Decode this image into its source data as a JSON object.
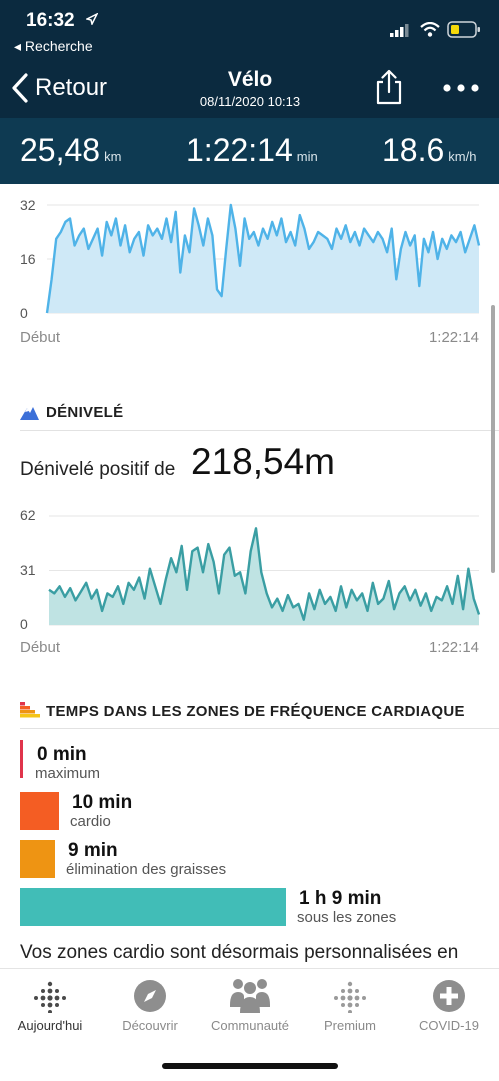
{
  "status_bar": {
    "time": "16:32",
    "back_app": "◂ Recherche"
  },
  "header": {
    "back_label": "Retour",
    "title": "Vélo",
    "subtitle": "08/11/2020 10:13"
  },
  "stats": [
    {
      "value": "25,48",
      "unit": "km"
    },
    {
      "value": "1:22:14",
      "unit": "min"
    },
    {
      "value": "18.6",
      "unit": "km/h"
    }
  ],
  "speed_chart": {
    "chart_data": {
      "type": "area",
      "y_ticks": [
        "32",
        "16",
        "0"
      ],
      "ylim": [
        0,
        32
      ],
      "x_start_label": "Début",
      "x_end_label": "1:22:14",
      "color": "#4fb3e8",
      "fill": "#cfe9f7",
      "values": [
        0,
        10,
        22,
        24,
        27,
        28,
        20,
        23,
        25,
        19,
        22,
        25,
        17,
        27,
        23,
        28,
        20,
        26,
        18,
        22,
        24,
        17,
        26,
        23,
        25,
        22,
        28,
        21,
        30,
        12,
        23,
        18,
        31,
        26,
        20,
        28,
        23,
        7,
        5,
        19,
        32,
        25,
        14,
        28,
        22,
        24,
        20,
        25,
        22,
        27,
        23,
        28,
        21,
        24,
        20,
        29,
        25,
        19,
        21,
        24,
        23,
        22,
        19,
        25,
        22,
        26,
        21,
        24,
        20,
        25,
        23,
        21,
        24,
        22,
        18,
        25,
        10,
        19,
        24,
        20,
        23,
        8,
        22,
        18,
        24,
        16,
        22,
        19,
        23,
        21,
        24,
        18,
        22,
        26,
        20
      ]
    }
  },
  "elevation": {
    "section_title": "DÉNIVELÉ",
    "summary_prefix": "Dénivelé positif de",
    "summary_value": "218,54m",
    "chart_data": {
      "type": "area",
      "y_ticks": [
        "62",
        "31",
        "0"
      ],
      "ylim": [
        0,
        62
      ],
      "x_start_label": "Début",
      "x_end_label": "1:22:14",
      "color": "#3a9ea3",
      "fill": "#bfe3e3",
      "values": [
        20,
        18,
        22,
        16,
        21,
        14,
        19,
        24,
        15,
        20,
        8,
        18,
        16,
        22,
        12,
        24,
        20,
        27,
        15,
        32,
        22,
        12,
        26,
        38,
        30,
        45,
        20,
        42,
        44,
        30,
        46,
        36,
        18,
        40,
        44,
        28,
        30,
        18,
        42,
        55,
        30,
        18,
        10,
        15,
        8,
        17,
        10,
        12,
        3,
        18,
        9,
        20,
        12,
        16,
        8,
        22,
        10,
        20,
        14,
        18,
        8,
        24,
        12,
        15,
        25,
        9,
        18,
        22,
        14,
        20,
        11,
        18,
        8,
        16,
        14,
        22,
        12,
        28,
        9,
        32,
        15,
        6
      ]
    }
  },
  "hr_zones": {
    "section_title": "TEMPS DANS LES ZONES DE FRÉQUENCE CARDIAQUE",
    "zones": [
      {
        "time": "0 min",
        "label": "maximum",
        "color": "#e0344b",
        "minutes": 0
      },
      {
        "time": "10 min",
        "label": "cardio",
        "color": "#f45d23",
        "minutes": 10
      },
      {
        "time": "9 min",
        "label": "élimination des graisses",
        "color": "#ee9413",
        "minutes": 9
      },
      {
        "time": "1 h 9 min",
        "label": "sous les zones",
        "color": "#41bdb7",
        "minutes": 69
      }
    ],
    "note": "Vos zones cardio sont désormais personnalisées en"
  },
  "tab_bar": {
    "tabs": [
      {
        "label": "Aujourd'hui",
        "icon": "today-dots-icon",
        "active": true
      },
      {
        "label": "Découvrir",
        "icon": "compass-icon",
        "active": false
      },
      {
        "label": "Communauté",
        "icon": "community-icon",
        "active": false
      },
      {
        "label": "Premium",
        "icon": "premium-dots-icon",
        "active": false
      },
      {
        "label": "COVID-19",
        "icon": "plus-circle-icon",
        "active": false
      }
    ]
  }
}
